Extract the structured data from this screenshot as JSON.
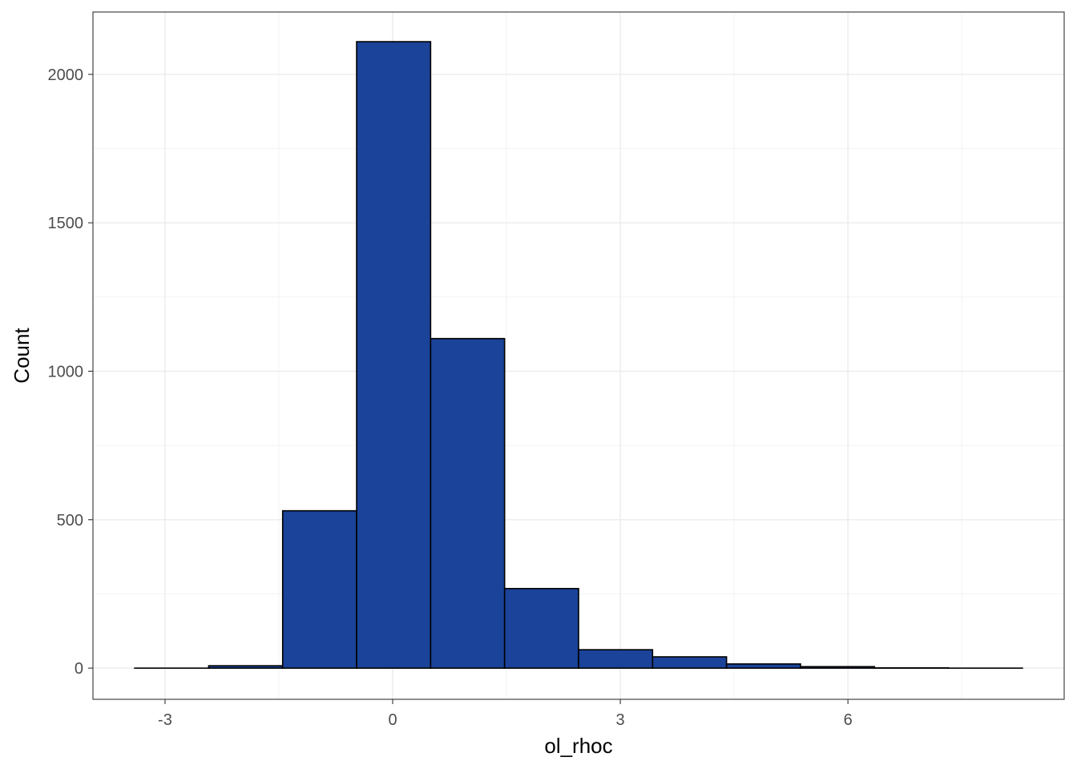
{
  "chart_data": {
    "type": "bar",
    "subtype": "histogram",
    "title": "",
    "xlabel": "ol_rhoc",
    "ylabel": "Count",
    "bin_width": 0.975,
    "bins": [
      {
        "x0": -3.4,
        "x1": -2.425,
        "count": 0
      },
      {
        "x0": -2.425,
        "x1": -1.45,
        "count": 8
      },
      {
        "x0": -1.45,
        "x1": -0.475,
        "count": 530
      },
      {
        "x0": -0.475,
        "x1": 0.5,
        "count": 2110
      },
      {
        "x0": 0.5,
        "x1": 1.475,
        "count": 1110
      },
      {
        "x0": 1.475,
        "x1": 2.45,
        "count": 268
      },
      {
        "x0": 2.45,
        "x1": 3.425,
        "count": 62
      },
      {
        "x0": 3.425,
        "x1": 4.4,
        "count": 38
      },
      {
        "x0": 4.4,
        "x1": 5.375,
        "count": 14
      },
      {
        "x0": 5.375,
        "x1": 6.35,
        "count": 5
      },
      {
        "x0": 6.35,
        "x1": 7.325,
        "count": 1
      },
      {
        "x0": 7.325,
        "x1": 8.3,
        "count": 0
      }
    ],
    "xlim": [
      -3.95,
      8.85
    ],
    "ylim": [
      -105,
      2210
    ],
    "x_ticks": [
      -3,
      0,
      3,
      6
    ],
    "x_tick_labels": [
      "-3",
      "0",
      "3",
      "6"
    ],
    "y_ticks": [
      0,
      500,
      1000,
      1500,
      2000
    ],
    "y_tick_labels": [
      "0",
      "500",
      "1000",
      "1500",
      "2000"
    ],
    "x_minor_ticks": [
      -1.5,
      1.5,
      4.5,
      7.5
    ],
    "y_minor_ticks": [
      250,
      750,
      1250,
      1750
    ],
    "grid": true,
    "legend": "none",
    "colors": {
      "bar_fill": "#1a4399",
      "bar_outline": "#000000",
      "grid_major": "#ebebeb",
      "grid_minor": "#f3f3f3",
      "panel_border": "#333333",
      "background": "#ffffff"
    }
  }
}
